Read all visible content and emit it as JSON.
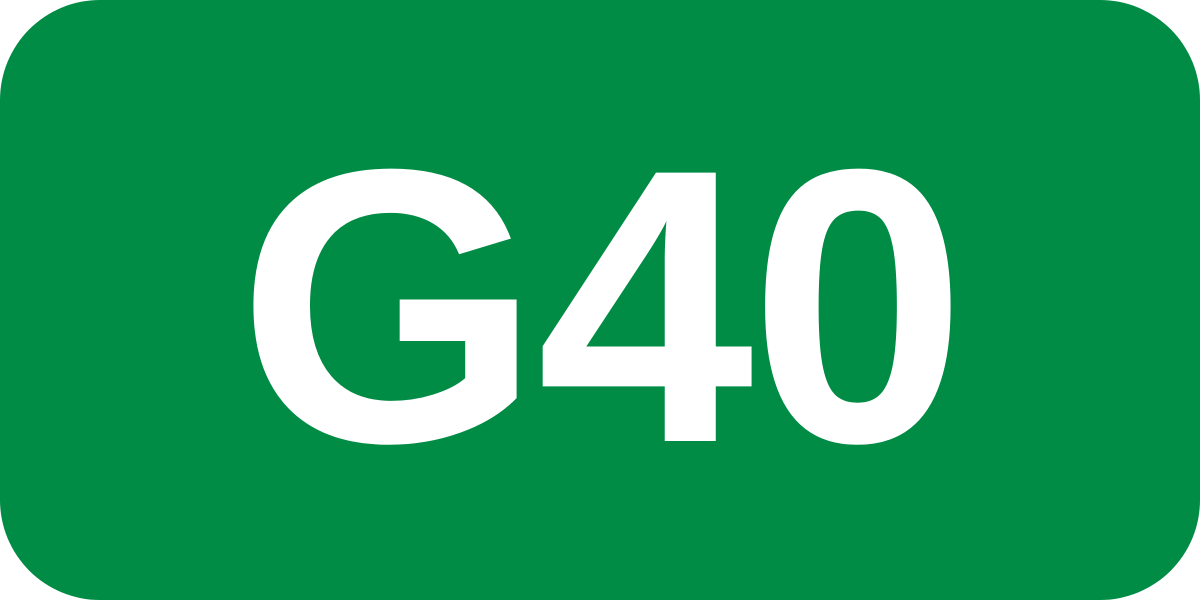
{
  "sign": {
    "code": "G40",
    "background_color": "#008c44",
    "text_color": "#ffffff"
  }
}
